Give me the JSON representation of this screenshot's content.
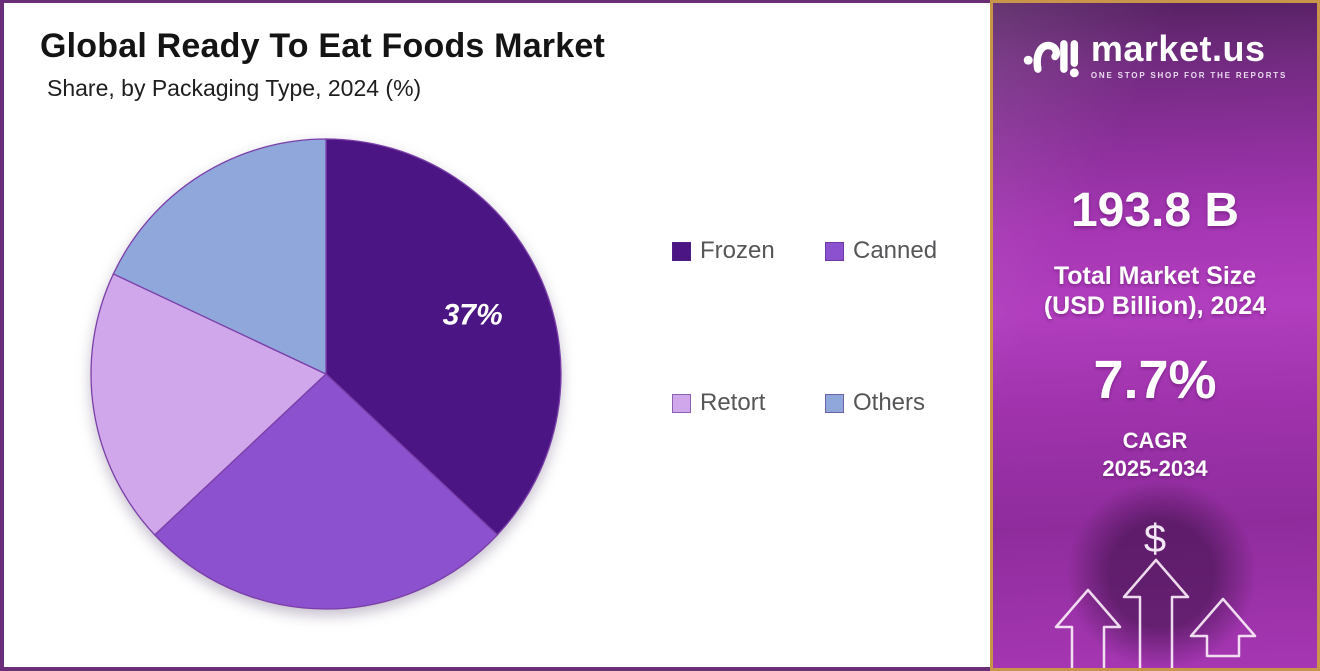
{
  "chart_data": {
    "type": "pie",
    "title": "Global Ready To Eat Foods Market",
    "subtitle": "Share, by Packaging Type, 2024 (%)",
    "unit": "%",
    "direction": "clockwise",
    "start_angle_deg": 0,
    "outline_color": "#7B3FA9",
    "legend_position": "right",
    "legend_columns": 2,
    "slices": [
      {
        "label": "Frozen",
        "value": 37,
        "color": "#4B1583",
        "data_label": "37%"
      },
      {
        "label": "Canned",
        "value": 26,
        "color": "#8C51CE",
        "data_label": ""
      },
      {
        "label": "Retort",
        "value": 19,
        "color": "#D0A7EA",
        "data_label": ""
      },
      {
        "label": "Others",
        "value": 18,
        "color": "#90A7DC",
        "data_label": ""
      }
    ]
  },
  "sidebar": {
    "logo": {
      "brand": "market.us",
      "tagline": "ONE STOP SHOP FOR THE REPORTS"
    },
    "market_size_value": "193.8 B",
    "market_size_label_line1": "Total Market Size",
    "market_size_label_line2": "(USD Billion), 2024",
    "cagr_value": "7.7%",
    "cagr_label_line1": "CAGR",
    "cagr_label_line2": "2025-2034",
    "dollar_symbol": "$"
  }
}
